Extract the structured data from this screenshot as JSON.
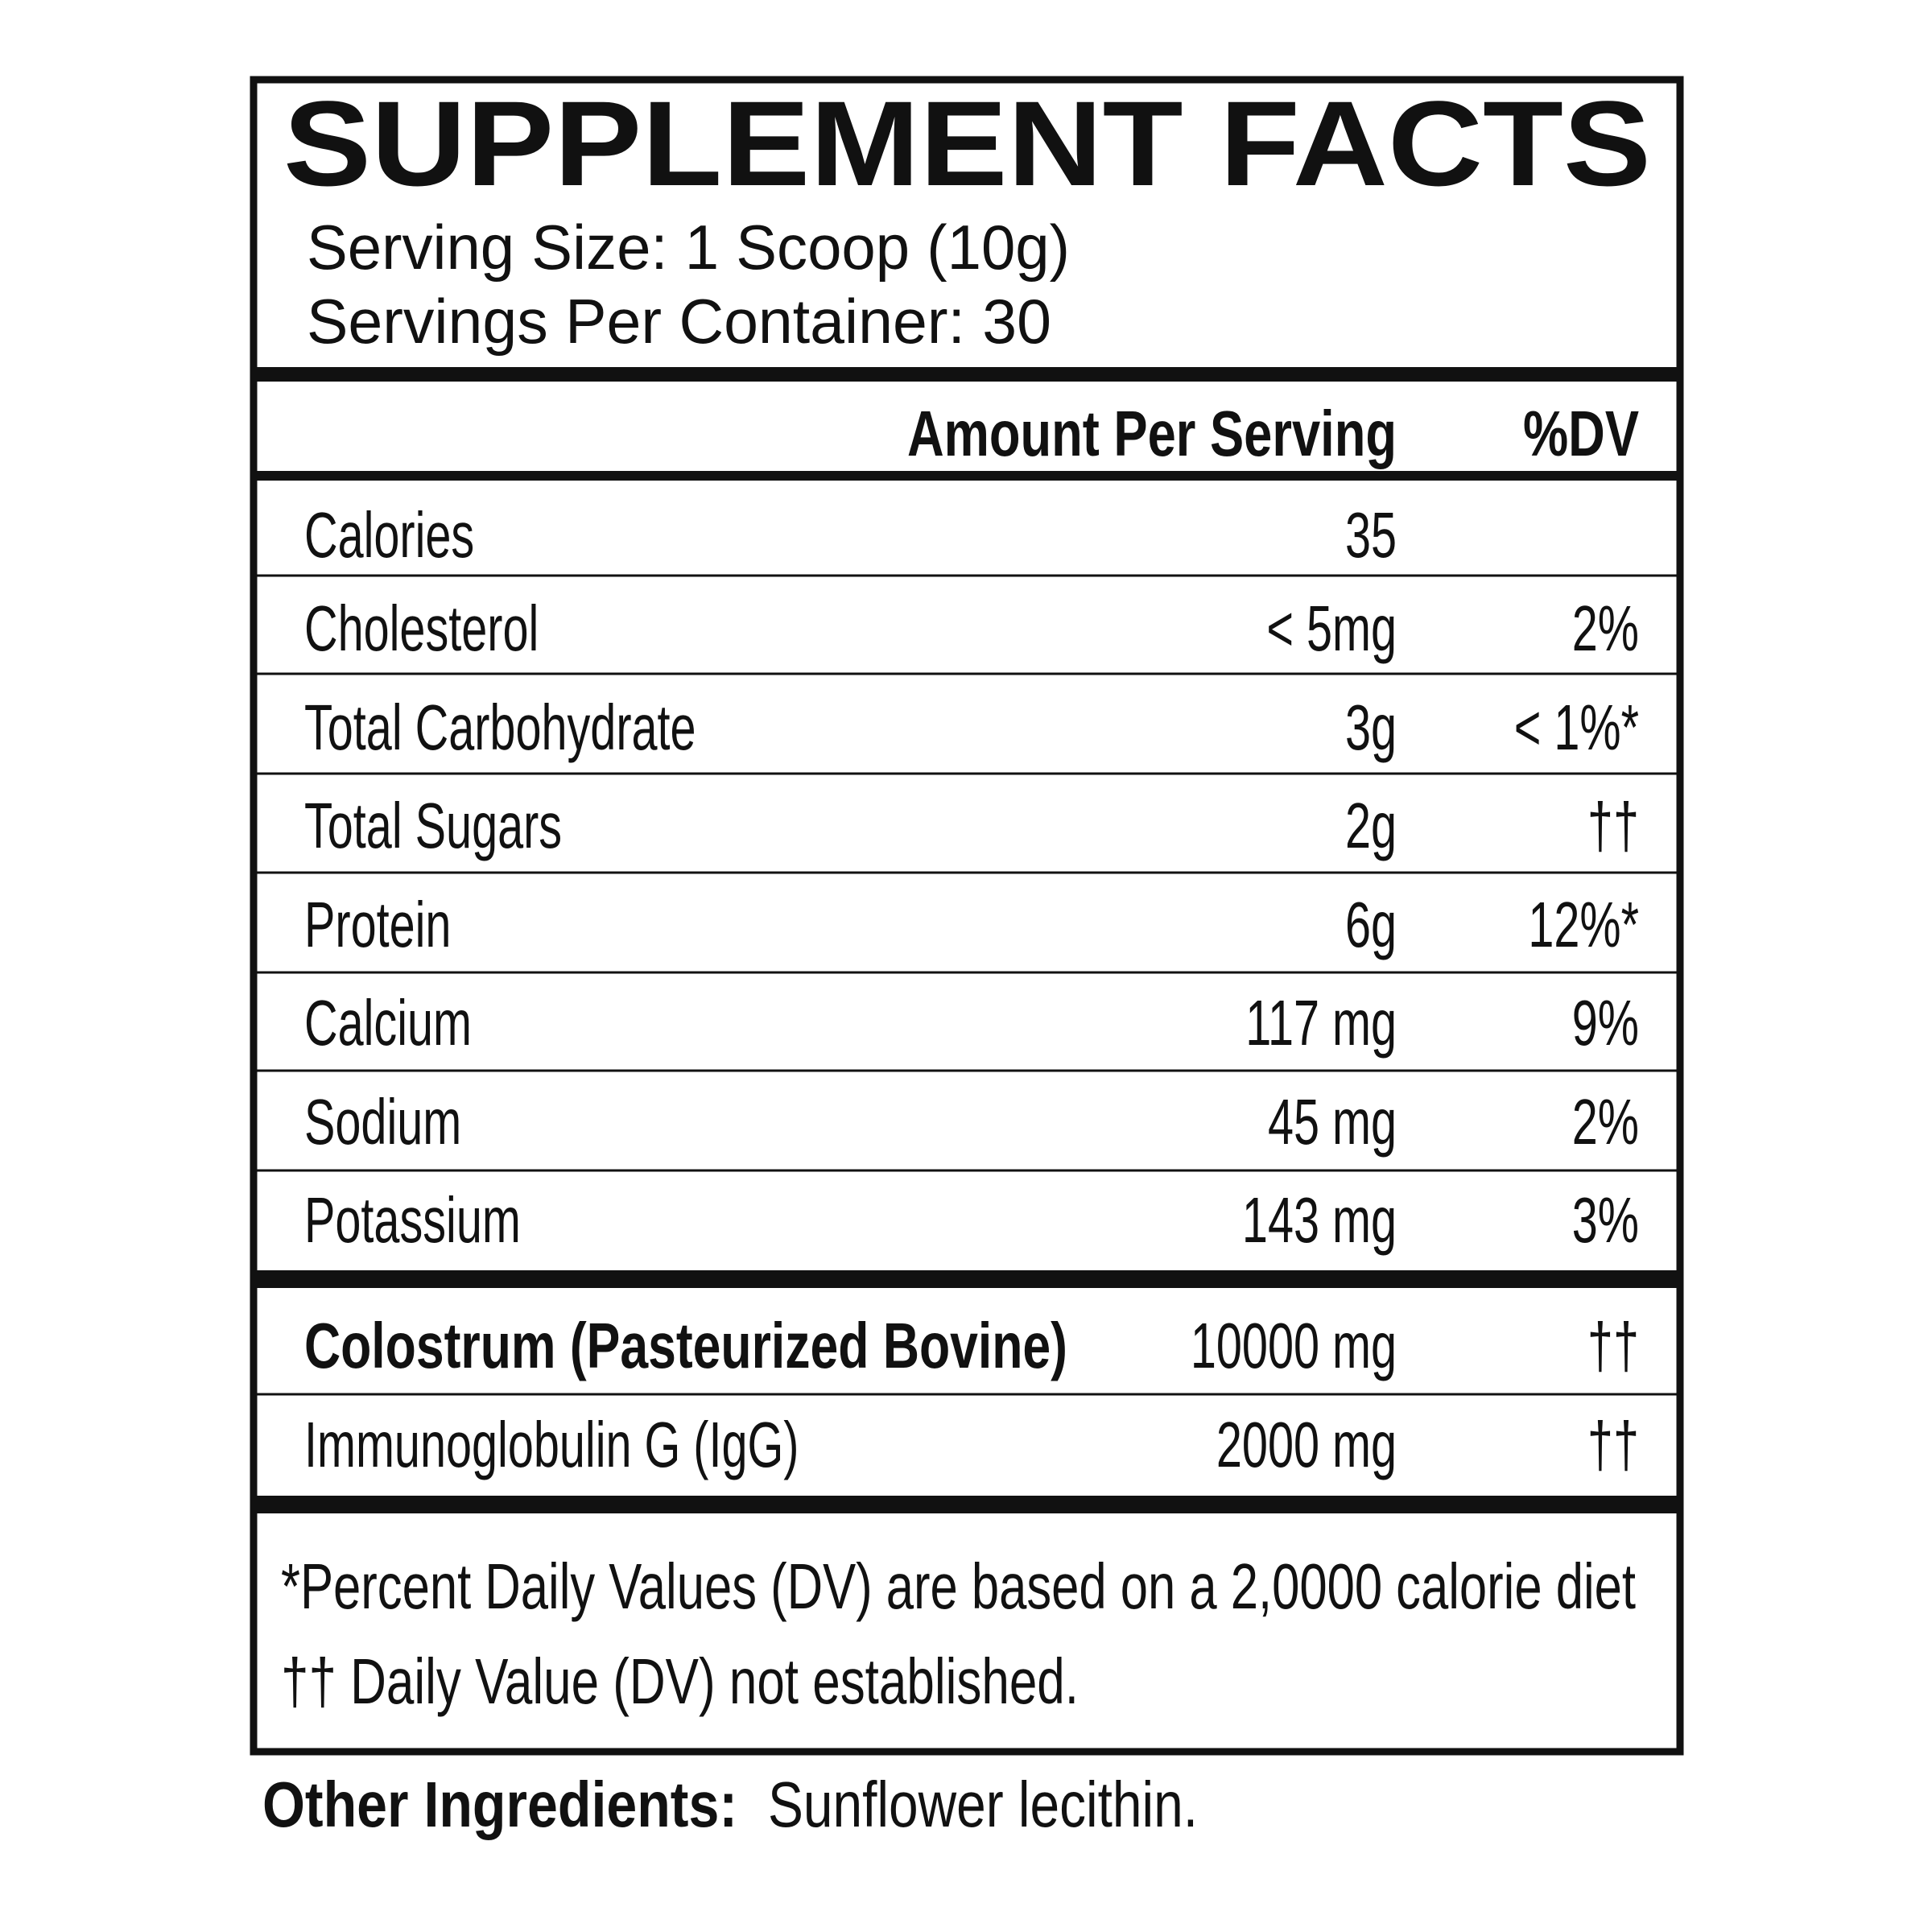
{
  "title": "SUPPLEMENT FACTS",
  "serving_size": "Serving Size: 1 Scoop (10g)",
  "servings_per_container": "Servings Per Container: 30",
  "header": {
    "amount": "Amount Per Serving",
    "dv": "%DV"
  },
  "rows": [
    {
      "name": "Calories",
      "amount": "35"
    },
    {
      "name": "Cholesterol",
      "amount": "< 5mg",
      "dv": "2%"
    },
    {
      "name": "Total Carbohydrate",
      "amount": "3g",
      "dv": "< 1%*"
    },
    {
      "name": "Total Sugars",
      "amount": "2g",
      "dv": "††"
    },
    {
      "name": "Protein",
      "amount": "6g",
      "dv": "12%*"
    },
    {
      "name": "Calcium",
      "amount": "117 mg",
      "dv": "9%"
    },
    {
      "name": "Sodium",
      "amount": "45 mg",
      "dv": "2%"
    },
    {
      "name": "Potassium",
      "amount": "143 mg",
      "dv": "3%"
    }
  ],
  "ingredients": [
    {
      "name": "Colostrum (Pasteurized Bovine)",
      "amount": "10000 mg",
      "dv": "††"
    },
    {
      "name": "Immunoglobulin G (IgG)",
      "amount": "2000 mg",
      "dv": "††"
    }
  ],
  "footnotes": [
    "*Percent Daily Values (DV) are based on a 2,0000 calorie diet",
    "†† Daily Value (DV) not established."
  ],
  "other_ingredients": {
    "label": "Other Ingredients:",
    "text": "Sunflower lecithin."
  }
}
